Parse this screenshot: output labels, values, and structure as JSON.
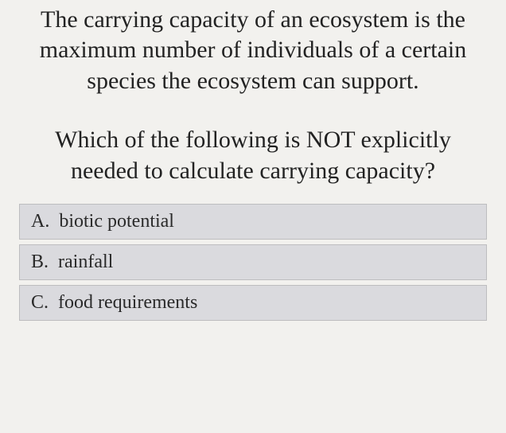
{
  "question": {
    "part1": "The carrying capacity of an ecosystem is the maximum number of individuals of a certain species the ecosystem can support.",
    "part2": "Which of the following is NOT explicitly needed to calculate carrying capacity?"
  },
  "answers": [
    {
      "letter": "A.",
      "text": "biotic potential"
    },
    {
      "letter": "B.",
      "text": "rainfall"
    },
    {
      "letter": "C.",
      "text": "food requirements"
    }
  ],
  "colors": {
    "page_background": "#f2f1ee",
    "text": "#2a2a2a",
    "answer_background": "#dadade",
    "answer_border": "#bdbdbf"
  },
  "typography": {
    "font_family": "Georgia, Times New Roman, serif",
    "question_fontsize": 30,
    "answer_fontsize": 24
  }
}
